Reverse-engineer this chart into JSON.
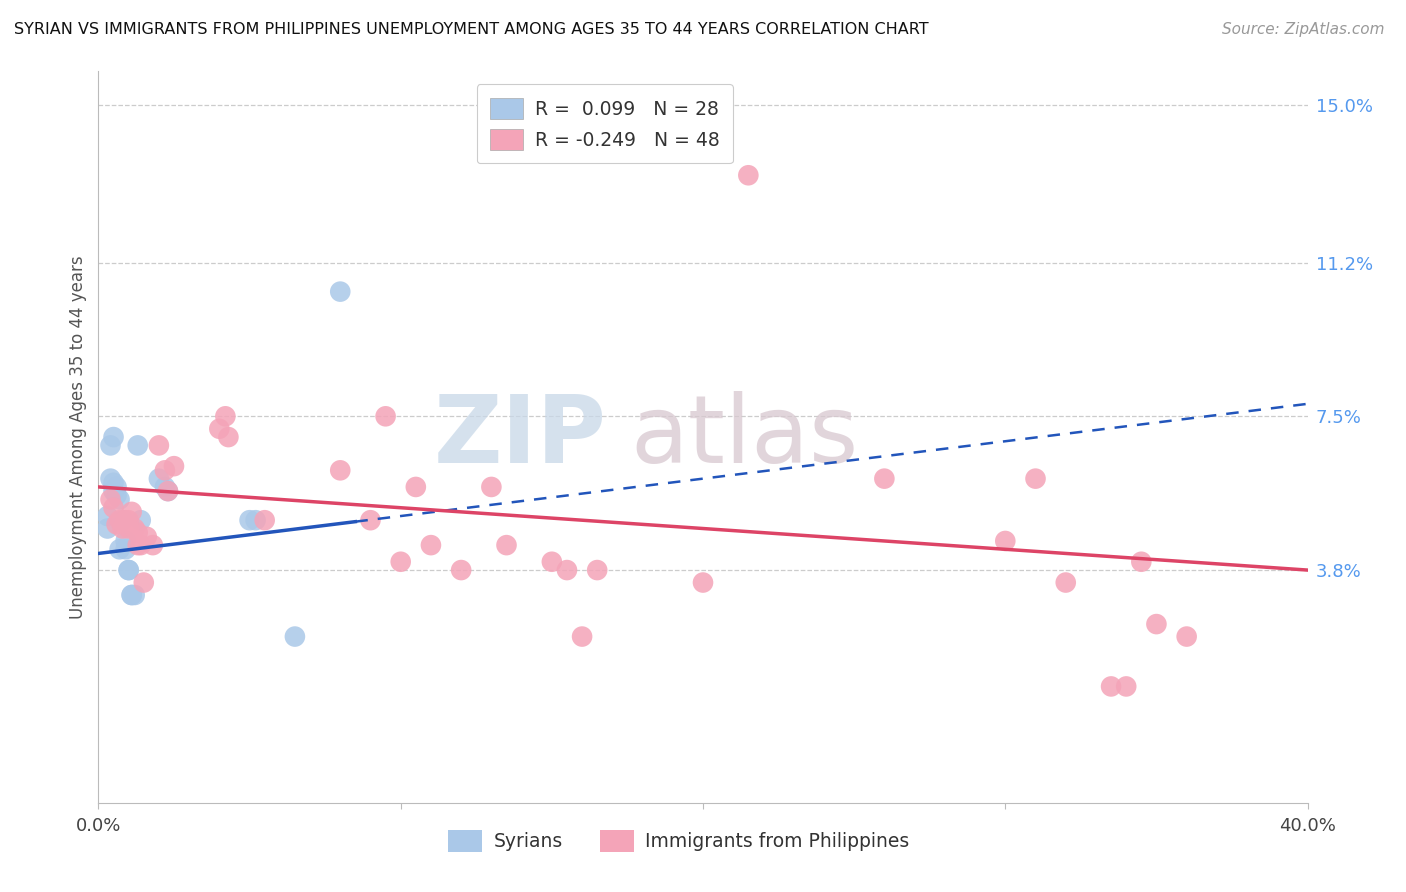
{
  "title": "SYRIAN VS IMMIGRANTS FROM PHILIPPINES UNEMPLOYMENT AMONG AGES 35 TO 44 YEARS CORRELATION CHART",
  "source": "Source: ZipAtlas.com",
  "ylabel": "Unemployment Among Ages 35 to 44 years",
  "right_ytick_vals": [
    0.038,
    0.075,
    0.112,
    0.15
  ],
  "right_ytick_labels": [
    "3.8%",
    "7.5%",
    "11.2%",
    "15.0%"
  ],
  "xmin": 0.0,
  "xmax": 0.4,
  "ymin": -0.018,
  "ymax": 0.158,
  "legend_syrian_r": "0.099",
  "legend_syrian_n": "28",
  "legend_phil_r": "-0.249",
  "legend_phil_n": "48",
  "color_syrian": "#aac8e8",
  "color_phil": "#f4a4b8",
  "color_line_syrian": "#2255bb",
  "color_line_phil": "#dd4466",
  "gridline_y": [
    0.038,
    0.075,
    0.112,
    0.15
  ],
  "syrian_line_x0": 0.0,
  "syrian_line_y0": 0.042,
  "syrian_line_x1": 0.4,
  "syrian_line_y1": 0.078,
  "phil_line_x0": 0.0,
  "phil_line_y0": 0.058,
  "phil_line_x1": 0.4,
  "phil_line_y1": 0.038,
  "syrians_x": [
    0.003,
    0.003,
    0.004,
    0.004,
    0.005,
    0.005,
    0.005,
    0.006,
    0.006,
    0.007,
    0.007,
    0.008,
    0.009,
    0.009,
    0.01,
    0.01,
    0.011,
    0.011,
    0.012,
    0.013,
    0.014,
    0.02,
    0.022,
    0.023,
    0.05,
    0.052,
    0.065,
    0.08
  ],
  "syrians_y": [
    0.048,
    0.051,
    0.06,
    0.068,
    0.057,
    0.059,
    0.07,
    0.056,
    0.058,
    0.055,
    0.043,
    0.05,
    0.045,
    0.043,
    0.038,
    0.038,
    0.032,
    0.032,
    0.032,
    0.068,
    0.05,
    0.06,
    0.058,
    0.057,
    0.05,
    0.05,
    0.022,
    0.105
  ],
  "philippines_x": [
    0.004,
    0.005,
    0.006,
    0.007,
    0.008,
    0.009,
    0.01,
    0.01,
    0.011,
    0.012,
    0.013,
    0.013,
    0.014,
    0.015,
    0.016,
    0.018,
    0.02,
    0.022,
    0.023,
    0.025,
    0.04,
    0.042,
    0.043,
    0.055,
    0.08,
    0.09,
    0.095,
    0.1,
    0.105,
    0.11,
    0.12,
    0.13,
    0.135,
    0.15,
    0.155,
    0.16,
    0.165,
    0.2,
    0.215,
    0.26,
    0.3,
    0.31,
    0.32,
    0.335,
    0.34,
    0.345,
    0.35,
    0.36
  ],
  "philippines_y": [
    0.055,
    0.053,
    0.049,
    0.05,
    0.048,
    0.05,
    0.05,
    0.048,
    0.052,
    0.048,
    0.044,
    0.047,
    0.044,
    0.035,
    0.046,
    0.044,
    0.068,
    0.062,
    0.057,
    0.063,
    0.072,
    0.075,
    0.07,
    0.05,
    0.062,
    0.05,
    0.075,
    0.04,
    0.058,
    0.044,
    0.038,
    0.058,
    0.044,
    0.04,
    0.038,
    0.022,
    0.038,
    0.035,
    0.133,
    0.06,
    0.045,
    0.06,
    0.035,
    0.01,
    0.01,
    0.04,
    0.025,
    0.022
  ]
}
